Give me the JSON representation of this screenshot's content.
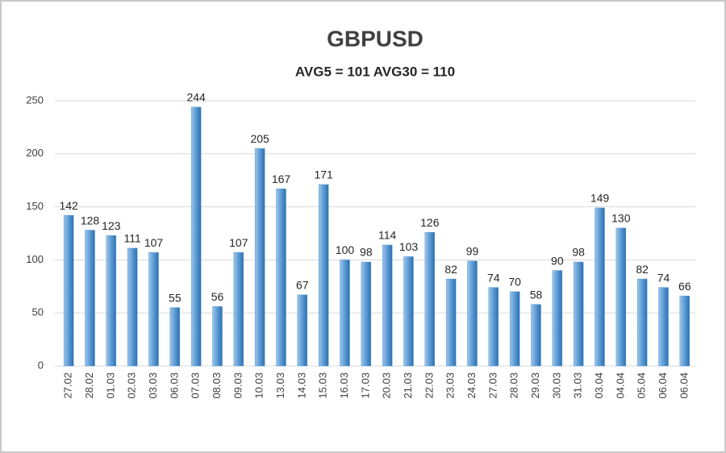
{
  "chart_data": {
    "type": "bar",
    "title": "GBPUSD",
    "subtitle": "AVG5 = 101 AVG30 = 110",
    "categories": [
      "27.02",
      "28.02",
      "01.03",
      "02.03",
      "03.03",
      "06.03",
      "07.03",
      "08.03",
      "09.03",
      "10.03",
      "13.03",
      "14.03",
      "15.03",
      "16.03",
      "17.03",
      "20.03",
      "21.03",
      "22.03",
      "23.03",
      "24.03",
      "27.03",
      "28.03",
      "29.03",
      "30.03",
      "31.03",
      "03.04",
      "04.04",
      "05.04",
      "06.04",
      "06.04"
    ],
    "values": [
      142,
      128,
      123,
      111,
      107,
      55,
      244,
      56,
      107,
      205,
      167,
      67,
      171,
      100,
      98,
      114,
      103,
      126,
      82,
      99,
      74,
      70,
      58,
      90,
      98,
      149,
      130,
      82,
      74,
      66
    ],
    "color": "#5b9bd5",
    "ylim": [
      0,
      250
    ],
    "yticks": [
      0,
      50,
      100,
      150,
      200,
      250
    ],
    "grid": true
  }
}
